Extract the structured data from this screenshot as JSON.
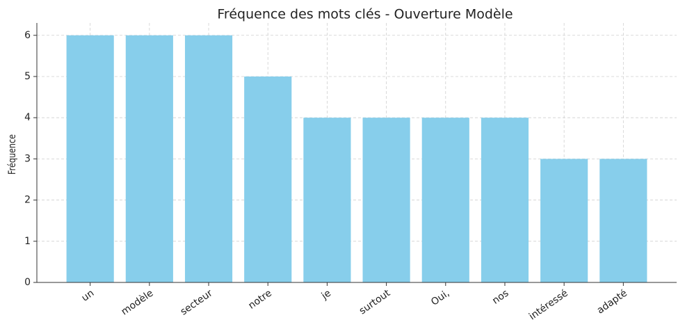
{
  "chart_data": {
    "type": "bar",
    "title": "Fréquence des mots clés - Ouverture Modèle",
    "y_label": "Fréquence",
    "categories": [
      "un",
      "modèle",
      "secteur",
      "notre",
      "je",
      "surtout",
      "Oui,",
      "nos",
      "intéressé",
      "adapté"
    ],
    "values": [
      6,
      6,
      6,
      5,
      4,
      4,
      4,
      4,
      3,
      3
    ],
    "color": "#87ceeb",
    "ylim": [
      0,
      6.3
    ],
    "yticks": [
      0,
      1,
      2,
      3,
      4,
      5,
      6
    ],
    "grid": true
  }
}
